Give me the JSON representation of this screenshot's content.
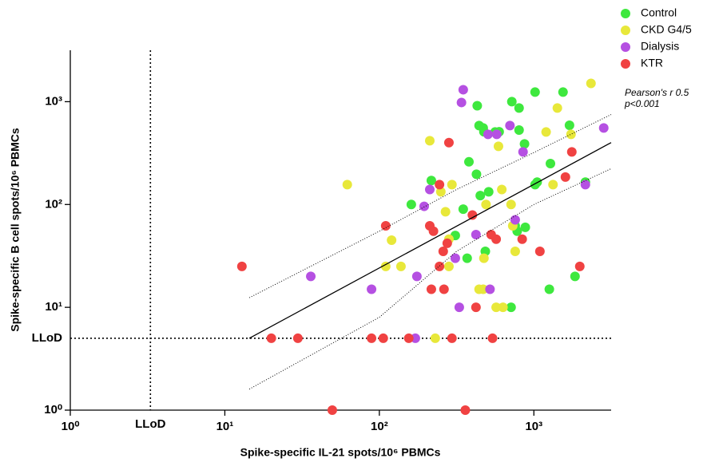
{
  "chart_data": {
    "type": "scatter",
    "x_label": "Spike-specific IL-21 spots/10⁶ PBMCs",
    "y_label": "Spike-specific B cell spots/10⁶ PBMCs",
    "log_x": true,
    "log_y": true,
    "xlim": [
      1,
      3162
    ],
    "ylim": [
      1,
      3162
    ],
    "xticks": [
      {
        "value": 1,
        "label": "10⁰"
      },
      {
        "value": 10,
        "label": "10¹"
      },
      {
        "value": 100,
        "label": "10²"
      },
      {
        "value": 1000,
        "label": "10³"
      }
    ],
    "yticks": [
      {
        "value": 1,
        "label": "10⁰"
      },
      {
        "value": 10,
        "label": "10¹"
      },
      {
        "value": 100,
        "label": "10²"
      },
      {
        "value": 1000,
        "label": "10³"
      }
    ],
    "reference_lines": [
      {
        "axis": "x",
        "value": 3.3,
        "label": "LLoD"
      },
      {
        "axis": "y",
        "value": 5,
        "label": "LLoD"
      }
    ],
    "legend": "top-right",
    "annotations": [
      "Pearson's r 0.5",
      "p<0.001"
    ],
    "series": [
      {
        "name": "Control",
        "color": "#3ee83e",
        "x": [
          161,
          217,
          310,
          349,
          370,
          380,
          425,
          430,
          442,
          450,
          470,
          475,
          485,
          510,
          561,
          596,
          712,
          720,
          757,
          780,
          802,
          802,
          870,
          880,
          1018,
          1018,
          1050,
          1259,
          1280,
          1544,
          1700,
          1846,
          2154
        ],
        "values": [
          100,
          171,
          50,
          90,
          30,
          260,
          197,
          914,
          585,
          122,
          555,
          510,
          35,
          133,
          507,
          510,
          10,
          1000,
          62,
          55,
          530,
          867,
          388,
          60,
          1239,
          156,
          165,
          15,
          250,
          1239,
          590,
          20,
          165
        ]
      },
      {
        "name": "CKD G4/5",
        "color": "#e8e83a",
        "x": [
          62,
          110,
          120,
          138,
          212,
          250,
          268,
          282,
          282,
          295,
          230,
          442,
          470,
          475,
          490,
          590,
          620,
          570,
          631,
          712,
          730,
          757,
          1200,
          1330,
          1419,
          1739,
          2342
        ],
        "values": [
          156,
          25,
          45,
          25,
          417,
          133,
          85,
          46,
          25,
          156,
          5,
          15,
          15,
          30,
          100,
          368,
          140,
          10,
          10,
          100,
          62,
          35,
          507,
          156,
          867,
          481,
          1507
        ]
      },
      {
        "name": "Dialysis",
        "color": "#b550e2",
        "x": [
          36,
          89,
          171,
          175,
          195,
          212,
          310,
          329,
          340,
          349,
          422,
          520,
          505,
          575,
          700,
          757,
          851,
          2154,
          2832
        ],
        "values": [
          20,
          15,
          5,
          20,
          96,
          140,
          30,
          10,
          982,
          1307,
          51,
          15,
          481,
          481,
          585,
          71,
          325,
          156,
          555
        ]
      },
      {
        "name": "KTR",
        "color": "#f04242",
        "x": [
          12.9,
          20,
          29.7,
          49.6,
          89,
          106,
          110,
          155,
          212,
          217,
          224,
          245,
          245,
          259,
          262,
          275,
          282,
          295,
          360,
          400,
          422,
          529,
          540,
          570,
          840,
          1094,
          1600,
          1760,
          1982
        ],
        "values": [
          25,
          5,
          5,
          1,
          5,
          5,
          62,
          5,
          62,
          15,
          55,
          156,
          25,
          35,
          15,
          42,
          400,
          5,
          1,
          79,
          10,
          51,
          5,
          46,
          46,
          35,
          185,
          325,
          25
        ]
      }
    ],
    "fit": {
      "x": [
        14.4,
        3162
      ],
      "values": [
        5,
        400
      ]
    },
    "confidence_band": {
      "x": [
        14.4,
        100,
        316,
        1000,
        3162
      ],
      "upper": [
        12.4,
        55,
        140,
        320,
        750
      ],
      "lower": [
        1.6,
        8,
        35,
        100,
        223
      ]
    }
  }
}
